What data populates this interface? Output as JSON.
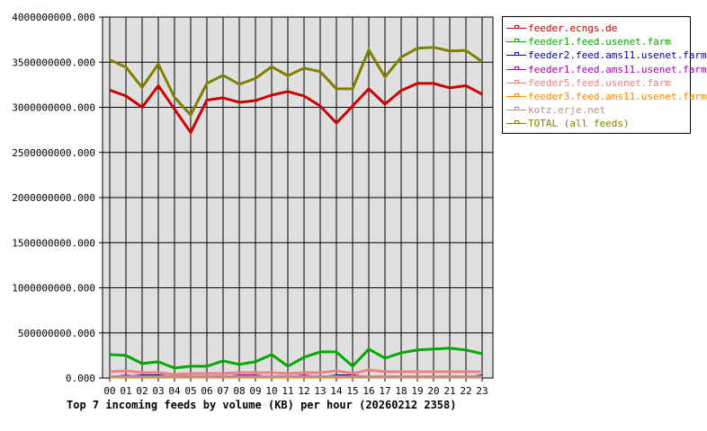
{
  "chart_data": {
    "type": "line",
    "title": "Top 7 incoming feeds by volume (KB) per hour (20260212 2358)",
    "xlabel": "",
    "ylabel": "",
    "ylim": [
      0,
      4000000000
    ],
    "grid": true,
    "legend_position": "right",
    "x": [
      "00",
      "01",
      "02",
      "03",
      "04",
      "05",
      "06",
      "07",
      "08",
      "09",
      "10",
      "11",
      "12",
      "13",
      "14",
      "15",
      "16",
      "17",
      "18",
      "19",
      "20",
      "21",
      "22",
      "23"
    ],
    "yticks": [
      "0.000",
      "500000000.000",
      "1000000000.000",
      "1500000000.000",
      "2000000000.000",
      "2500000000.000",
      "3000000000.000",
      "3500000000.000",
      "4000000000.000"
    ],
    "series": [
      {
        "name": "feeder.ecngs.de",
        "color": "#cc0000",
        "values": [
          3190000000,
          3125000000,
          3000000000,
          3240000000,
          2980000000,
          2720000000,
          3080000000,
          3105000000,
          3055000000,
          3075000000,
          3135000000,
          3175000000,
          3125000000,
          3015000000,
          2825000000,
          3015000000,
          3205000000,
          3035000000,
          3185000000,
          3265000000,
          3265000000,
          3215000000,
          3240000000,
          3145000000
        ]
      },
      {
        "name": "feeder1.feed.usenet.farm",
        "color": "#00aa00",
        "values": [
          260000000,
          250000000,
          160000000,
          180000000,
          110000000,
          130000000,
          130000000,
          190000000,
          150000000,
          180000000,
          260000000,
          130000000,
          230000000,
          290000000,
          290000000,
          130000000,
          320000000,
          220000000,
          280000000,
          310000000,
          320000000,
          330000000,
          310000000,
          270000000
        ]
      },
      {
        "name": "feeder2.feed.ams11.usenet.farm",
        "color": "#0000aa",
        "values": [
          10000000,
          15000000,
          30000000,
          30000000,
          10000000,
          10000000,
          10000000,
          10000000,
          10000000,
          10000000,
          10000000,
          10000000,
          10000000,
          10000000,
          30000000,
          30000000,
          10000000,
          10000000,
          10000000,
          10000000,
          10000000,
          10000000,
          10000000,
          30000000
        ]
      },
      {
        "name": "feeder1.feed.ams11.usenet.farm",
        "color": "#aa00aa",
        "values": [
          10000000,
          30000000,
          10000000,
          10000000,
          10000000,
          10000000,
          10000000,
          10000000,
          30000000,
          30000000,
          10000000,
          10000000,
          30000000,
          10000000,
          10000000,
          30000000,
          10000000,
          10000000,
          10000000,
          10000000,
          10000000,
          10000000,
          10000000,
          10000000
        ]
      },
      {
        "name": "feeder5.feed.usenet.farm",
        "color": "#f08080",
        "values": [
          70000000,
          80000000,
          60000000,
          60000000,
          40000000,
          50000000,
          50000000,
          50000000,
          60000000,
          60000000,
          60000000,
          50000000,
          60000000,
          60000000,
          80000000,
          50000000,
          90000000,
          70000000,
          70000000,
          70000000,
          70000000,
          70000000,
          70000000,
          70000000
        ]
      },
      {
        "name": "feeder3.feed.ams11.usenet.farm",
        "color": "#ff8800",
        "values": [
          5000000,
          5000000,
          5000000,
          5000000,
          5000000,
          5000000,
          5000000,
          5000000,
          5000000,
          5000000,
          5000000,
          5000000,
          5000000,
          5000000,
          5000000,
          5000000,
          5000000,
          5000000,
          5000000,
          5000000,
          5000000,
          5000000,
          5000000,
          5000000
        ]
      },
      {
        "name": "kotz.erje.net",
        "color": "#bc8f8f",
        "values": [
          15000000,
          15000000,
          15000000,
          15000000,
          15000000,
          15000000,
          15000000,
          15000000,
          15000000,
          15000000,
          15000000,
          15000000,
          15000000,
          15000000,
          15000000,
          15000000,
          15000000,
          15000000,
          15000000,
          15000000,
          15000000,
          15000000,
          15000000,
          15000000
        ]
      },
      {
        "name": "TOTAL (all feeds)",
        "color": "#808000",
        "values": [
          3525000000,
          3445000000,
          3220000000,
          3480000000,
          3110000000,
          2915000000,
          3265000000,
          3355000000,
          3255000000,
          3320000000,
          3450000000,
          3350000000,
          3435000000,
          3395000000,
          3205000000,
          3205000000,
          3635000000,
          3335000000,
          3555000000,
          3655000000,
          3665000000,
          3625000000,
          3630000000,
          3505000000
        ]
      }
    ]
  }
}
